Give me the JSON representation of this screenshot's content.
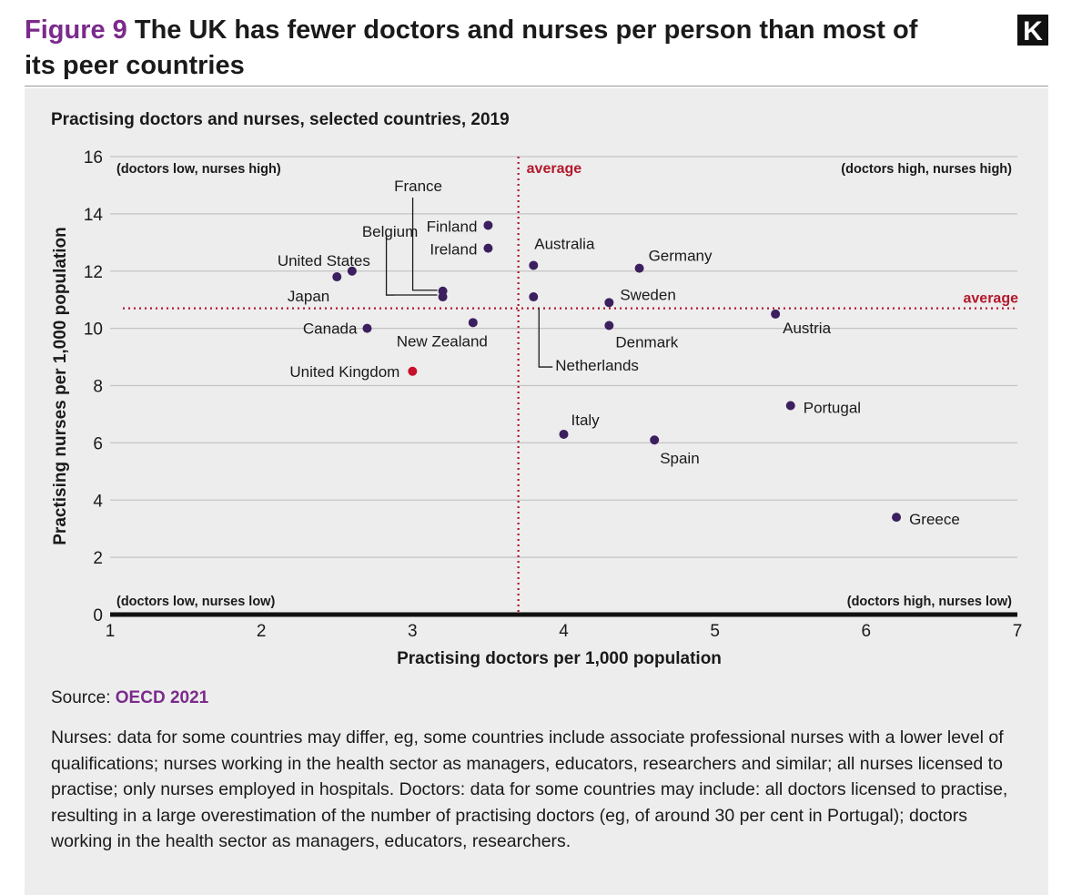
{
  "header": {
    "figure_label": "Figure 9",
    "title": "The UK has fewer doctors and nurses per person than most of its peer countries",
    "logo_letter": "K"
  },
  "subtitle": "Practising doctors and nurses, selected countries, 2019",
  "source": {
    "label": "Source:",
    "link_text": "OECD 2021"
  },
  "notes": "Nurses: data for some countries may differ, eg, some countries include associate professional nurses with a lower level of qualifications; nurses working in the health sector as managers, educators, researchers and similar; all nurses licensed to practise; only nurses employed in hospitals. Doctors: data for some countries may include: all doctors licensed to practise, resulting in a large overestimation of the number of practising doctors (eg, of around 30 per cent in Portugal); doctors working in the health sector as managers, educators, researchers.",
  "colors": {
    "point": "#3b1f5e",
    "highlight": "#c8102e",
    "average": "#b2182b",
    "accent": "#7b2a8c",
    "panel": "#ededed"
  },
  "chart_data": {
    "type": "scatter",
    "title": "Practising doctors and nurses, selected countries, 2019",
    "xlabel": "Practising doctors per 1,000 population",
    "ylabel": "Practising nurses per 1,000 population",
    "xlim": [
      1,
      7
    ],
    "ylim": [
      0,
      16
    ],
    "xticks": [
      1,
      2,
      3,
      4,
      5,
      6,
      7
    ],
    "yticks": [
      0,
      2,
      4,
      6,
      8,
      10,
      12,
      14,
      16
    ],
    "grid": "horizontal",
    "average_x": 3.7,
    "average_y": 10.7,
    "average_label": "average",
    "quadrant_labels": {
      "top_left": "(doctors low, nurses high)",
      "top_right": "(doctors high, nurses high)",
      "bottom_left": "(doctors low, nurses low)",
      "bottom_right": "(doctors high, nurses low)"
    },
    "points": [
      {
        "name": "Finland",
        "x": 3.5,
        "y": 13.6
      },
      {
        "name": "Ireland",
        "x": 3.5,
        "y": 12.8
      },
      {
        "name": "France",
        "x": 3.2,
        "y": 11.3
      },
      {
        "name": "Belgium",
        "x": 3.2,
        "y": 11.1
      },
      {
        "name": "United States",
        "x": 2.6,
        "y": 12.0
      },
      {
        "name": "Japan",
        "x": 2.5,
        "y": 11.8
      },
      {
        "name": "Canada",
        "x": 2.7,
        "y": 10.0
      },
      {
        "name": "New Zealand",
        "x": 3.4,
        "y": 10.2
      },
      {
        "name": "United Kingdom",
        "x": 3.0,
        "y": 8.5,
        "highlight": true
      },
      {
        "name": "Australia",
        "x": 3.8,
        "y": 12.2
      },
      {
        "name": "Netherlands",
        "x": 3.8,
        "y": 11.1
      },
      {
        "name": "Germany",
        "x": 4.5,
        "y": 12.1
      },
      {
        "name": "Sweden",
        "x": 4.3,
        "y": 10.9
      },
      {
        "name": "Denmark",
        "x": 4.3,
        "y": 10.1
      },
      {
        "name": "Austria",
        "x": 5.4,
        "y": 10.5
      },
      {
        "name": "Portugal",
        "x": 5.5,
        "y": 7.3
      },
      {
        "name": "Italy",
        "x": 4.0,
        "y": 6.3
      },
      {
        "name": "Spain",
        "x": 4.6,
        "y": 6.1
      },
      {
        "name": "Greece",
        "x": 6.2,
        "y": 3.4
      }
    ]
  }
}
